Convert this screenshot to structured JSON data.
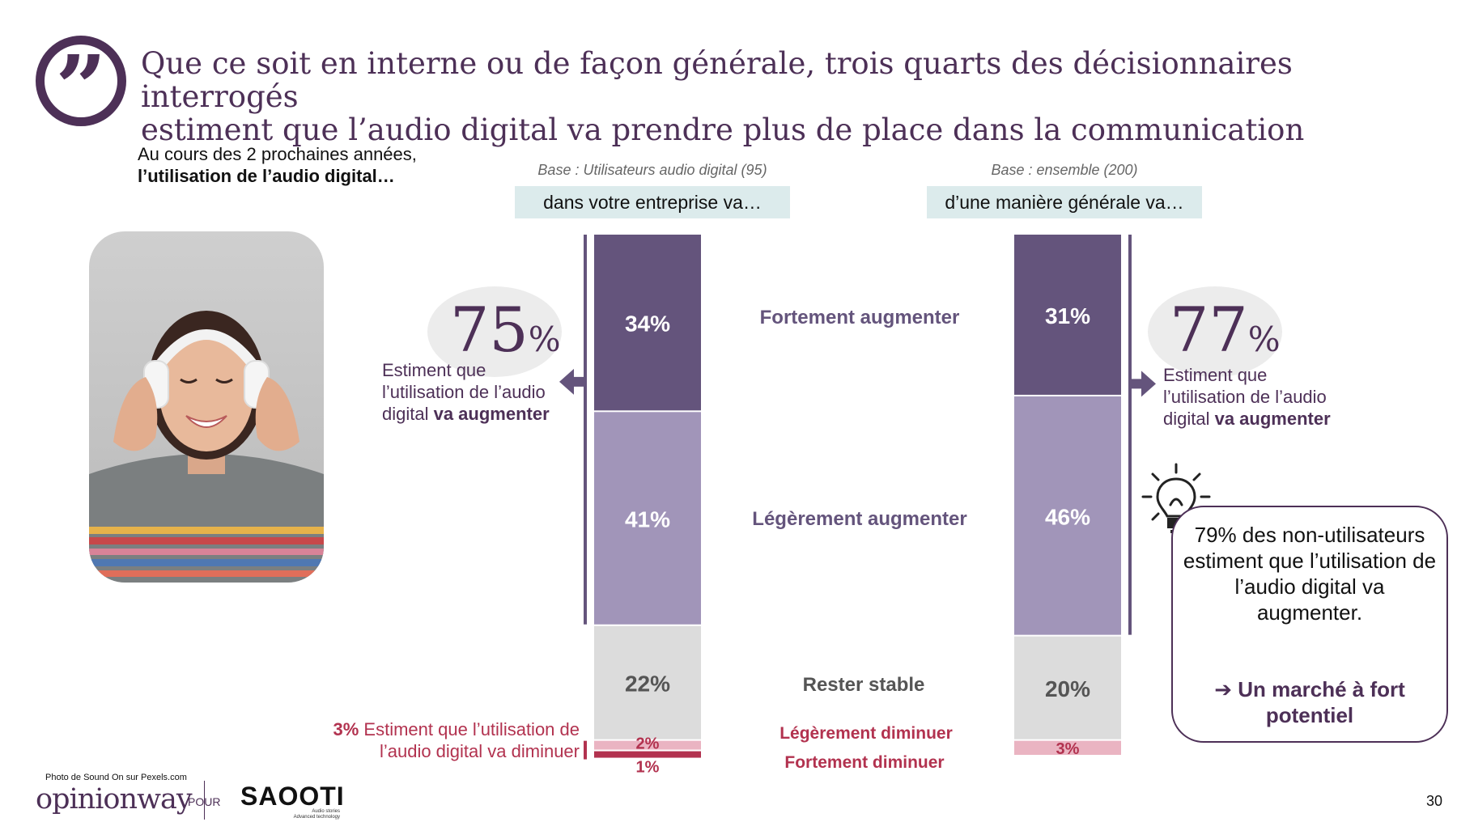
{
  "headline": {
    "line1": "Que ce soit en interne ou de façon générale, trois quarts des décisionnaires interrogés",
    "line2": "estiment que l’audio digital va prendre plus de place dans la communication"
  },
  "quote_glyph": "”",
  "intro": {
    "line1": "Au cours des 2 prochaines années,",
    "line2_bold": "l’utilisation de l’audio digital…"
  },
  "left_column": {
    "base": "Base : Utilisateurs audio digital (95)",
    "header": "dans votre entreprise va…",
    "summary_pct": "75",
    "summary_pct_sign": "%",
    "summary_text_1": "Estiment que",
    "summary_text_2": "l’utilisation de l’audio",
    "summary_text_3_plain": "digital ",
    "summary_text_3_bold": "va augmenter",
    "decrease_pct": "3%",
    "decrease_text_1": " Estiment que l’utilisation de",
    "decrease_text_2": "l’audio digital va diminuer"
  },
  "right_column": {
    "base": "Base : ensemble (200)",
    "header": "d’une manière générale va…",
    "summary_pct": "77",
    "summary_pct_sign": "%",
    "summary_text_1": "Estiment que",
    "summary_text_2": "l’utilisation de l’audio",
    "summary_text_3_plain": "digital ",
    "summary_text_3_bold": "va augmenter"
  },
  "callout": {
    "text": "79% des non-utilisateurs estiment que l’utilisation de l’audio digital va augmenter.",
    "strong": "➔ Un marché à fort potentiel"
  },
  "footer": {
    "photo_credit": "Photo de Sound On sur Pexels.com",
    "logo_left": "opinionway",
    "pour": "POUR",
    "logo_right": "SAOOTI",
    "logo_right_sub": "Audio stories\nAdvanced technology",
    "page_number": "30"
  },
  "colors": {
    "strong_up": "#64547c",
    "slight_up": "#a195b9",
    "stable": "#dcdcdc",
    "slight_down": "#eab4c2",
    "strong_down": "#b2324f",
    "brand": "#4d3057",
    "stable_text": "#555555"
  },
  "chart_data": {
    "type": "bar",
    "stacked": true,
    "orientation": "vertical",
    "categories": [
      "dans votre entreprise va…",
      "d’une manière générale va…"
    ],
    "series": [
      {
        "name": "Fortement augmenter",
        "values": [
          34,
          31
        ],
        "labels": [
          "34%",
          "31%"
        ]
      },
      {
        "name": "Légèrement augmenter",
        "values": [
          41,
          46
        ],
        "labels": [
          "41%",
          "46%"
        ]
      },
      {
        "name": "Rester stable",
        "values": [
          22,
          20
        ],
        "labels": [
          "22%",
          "20%"
        ]
      },
      {
        "name": "Légèrement diminuer",
        "values": [
          2,
          3
        ],
        "labels": [
          "2%",
          "3%"
        ]
      },
      {
        "name": "Fortement diminuer",
        "values": [
          1,
          0
        ],
        "labels": [
          "1%",
          ""
        ]
      }
    ],
    "ylim": [
      0,
      100
    ]
  }
}
